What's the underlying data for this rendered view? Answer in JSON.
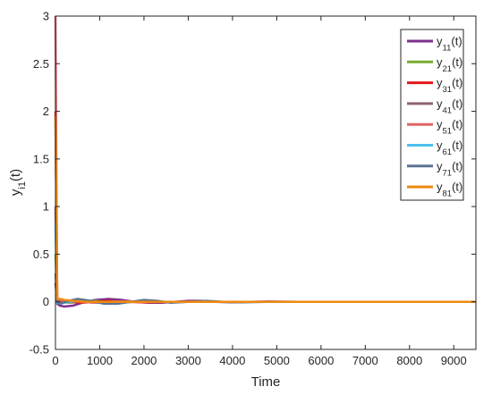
{
  "chart_data": {
    "type": "line",
    "title": "",
    "xlabel": "Time",
    "ylabel": "y_{i1}(t)",
    "xlim": [
      0,
      9500
    ],
    "ylim": [
      -0.5,
      3
    ],
    "xticks": [
      0,
      1000,
      2000,
      3000,
      4000,
      5000,
      6000,
      7000,
      8000,
      9000
    ],
    "yticks": [
      -0.5,
      0,
      0.5,
      1,
      1.5,
      2,
      2.5,
      3
    ],
    "xtick_labels": [
      "0",
      "1000",
      "2000",
      "3000",
      "4000",
      "5000",
      "6000",
      "7000",
      "8000",
      "9000"
    ],
    "ytick_labels": [
      "-0.5",
      "0",
      "0.5",
      "1",
      "1.5",
      "2",
      "2.5",
      "3"
    ],
    "grid": false,
    "legend_position": "top-right",
    "series": [
      {
        "name": "y_{11}(t)",
        "color": "#7e2f8e",
        "x": [
          0,
          40,
          100,
          200,
          400,
          600,
          900,
          1200,
          1500,
          1800,
          2100,
          2400,
          2700,
          3000,
          3300,
          3600,
          4000,
          4400,
          4800,
          5500,
          6500,
          7500,
          8500,
          9500
        ],
        "y": [
          0.2,
          -0.02,
          -0.04,
          -0.05,
          -0.04,
          -0.01,
          0.02,
          0.03,
          0.02,
          0.0,
          -0.01,
          -0.01,
          0.0,
          0.01,
          0.01,
          0.0,
          -0.005,
          0.0,
          0.003,
          0.0,
          0.0,
          0.0,
          0.0,
          0.0
        ]
      },
      {
        "name": "y_{21}(t)",
        "color": "#77ac30",
        "x": [
          0,
          40,
          100,
          300,
          600,
          900,
          1200,
          1600,
          2000,
          2500,
          3000,
          3500,
          4000,
          5000,
          6500,
          8000,
          9500
        ],
        "y": [
          0.5,
          0.01,
          0.0,
          -0.01,
          0.0,
          0.01,
          0.0,
          -0.005,
          0.005,
          0.0,
          0.0,
          0.0,
          0.0,
          0.0,
          0.0,
          0.0,
          0.0
        ]
      },
      {
        "name": "y_{31}(t)",
        "color": "#e31a1c",
        "x": [
          0,
          40,
          100,
          300,
          600,
          900,
          1200,
          1600,
          2000,
          2500,
          3000,
          3500,
          4000,
          5000,
          6500,
          8000,
          9500
        ],
        "y": [
          2.0,
          0.02,
          0.01,
          0.0,
          -0.01,
          0.0,
          0.01,
          0.0,
          -0.005,
          0.0,
          0.0,
          0.0,
          0.0,
          0.0,
          0.0,
          0.0,
          0.0
        ]
      },
      {
        "name": "y_{41}(t)",
        "color": "#8c6371",
        "x": [
          0,
          40,
          100,
          300,
          600,
          900,
          1200,
          1600,
          2000,
          2500,
          3000,
          3500,
          4000,
          5000,
          6500,
          8000,
          9500
        ],
        "y": [
          1.0,
          0.0,
          -0.01,
          0.01,
          0.0,
          -0.01,
          0.0,
          0.005,
          0.0,
          0.0,
          0.0,
          0.0,
          0.0,
          0.0,
          0.0,
          0.0,
          0.0
        ]
      },
      {
        "name": "y_{51}(t)",
        "color": "#e06666",
        "x": [
          0,
          40,
          100,
          300,
          600,
          900,
          1200,
          1600,
          2000,
          2500,
          3000,
          3500,
          4000,
          5000,
          6500,
          8000,
          9500
        ],
        "y": [
          3.0,
          0.03,
          0.02,
          0.01,
          0.0,
          -0.01,
          0.0,
          0.005,
          0.0,
          0.0,
          0.0,
          0.0,
          0.0,
          0.0,
          0.0,
          0.0,
          0.0
        ]
      },
      {
        "name": "y_{61}(t)",
        "color": "#4dbeee",
        "x": [
          0,
          40,
          100,
          300,
          600,
          900,
          1200,
          1600,
          2000,
          2500,
          3000,
          3500,
          4000,
          5000,
          6500,
          8000,
          9500
        ],
        "y": [
          0.8,
          -0.01,
          -0.02,
          0.0,
          0.01,
          0.0,
          -0.01,
          0.0,
          0.005,
          0.0,
          0.0,
          0.0,
          0.0,
          0.0,
          0.0,
          0.0,
          0.0
        ]
      },
      {
        "name": "y_{71}(t)",
        "color": "#5b7294",
        "x": [
          0,
          40,
          100,
          300,
          500,
          800,
          1100,
          1400,
          1700,
          2000,
          2300,
          2600,
          3000,
          3400,
          3800,
          4200,
          4800,
          5500,
          6500,
          8000,
          9500
        ],
        "y": [
          0.3,
          0.0,
          -0.02,
          0.01,
          0.03,
          0.01,
          -0.02,
          -0.02,
          0.0,
          0.02,
          0.01,
          -0.01,
          0.0,
          0.01,
          0.0,
          -0.005,
          0.0,
          0.0,
          0.0,
          0.0,
          0.0
        ]
      },
      {
        "name": "y_{81}(t)",
        "color": "#ee8b10",
        "x": [
          0,
          40,
          100,
          200,
          400,
          700,
          1000,
          1400,
          1800,
          2200,
          2600,
          3000,
          3500,
          4000,
          4600,
          5500,
          6500,
          8000,
          9500
        ],
        "y": [
          1.95,
          0.03,
          0.03,
          0.02,
          0.01,
          0.0,
          0.0,
          0.0,
          0.0,
          0.0,
          0.0,
          0.0,
          0.0,
          0.0,
          0.0,
          0.0,
          0.0,
          0.0,
          0.0
        ]
      }
    ]
  }
}
